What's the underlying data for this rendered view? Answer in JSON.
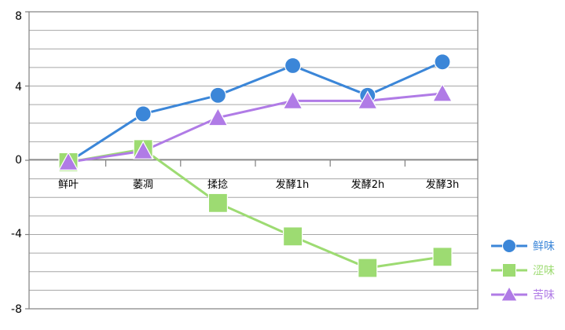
{
  "chart_data": {
    "type": "line",
    "categories": [
      "鲜叶",
      "萎凋",
      "揉捻",
      "发酵1h",
      "发酵2h",
      "发酵3h"
    ],
    "series": [
      {
        "name": "鲜味",
        "values": [
          -0.1,
          2.5,
          3.5,
          5.1,
          3.5,
          5.3
        ],
        "color": "#3b86d8",
        "marker": "circle"
      },
      {
        "name": "涩味",
        "values": [
          -0.1,
          0.6,
          -2.3,
          -4.1,
          -5.8,
          -5.2
        ],
        "color": "#9ddb72",
        "marker": "square"
      },
      {
        "name": "苦味",
        "values": [
          -0.1,
          0.5,
          2.3,
          3.2,
          3.2,
          3.6
        ],
        "color": "#b07be6",
        "marker": "triangle"
      }
    ],
    "yticks": [
      "8",
      "4",
      "0",
      "-4",
      "-8"
    ],
    "ylim": [
      -8,
      8
    ],
    "grid": true,
    "legend": "bottom-right"
  }
}
